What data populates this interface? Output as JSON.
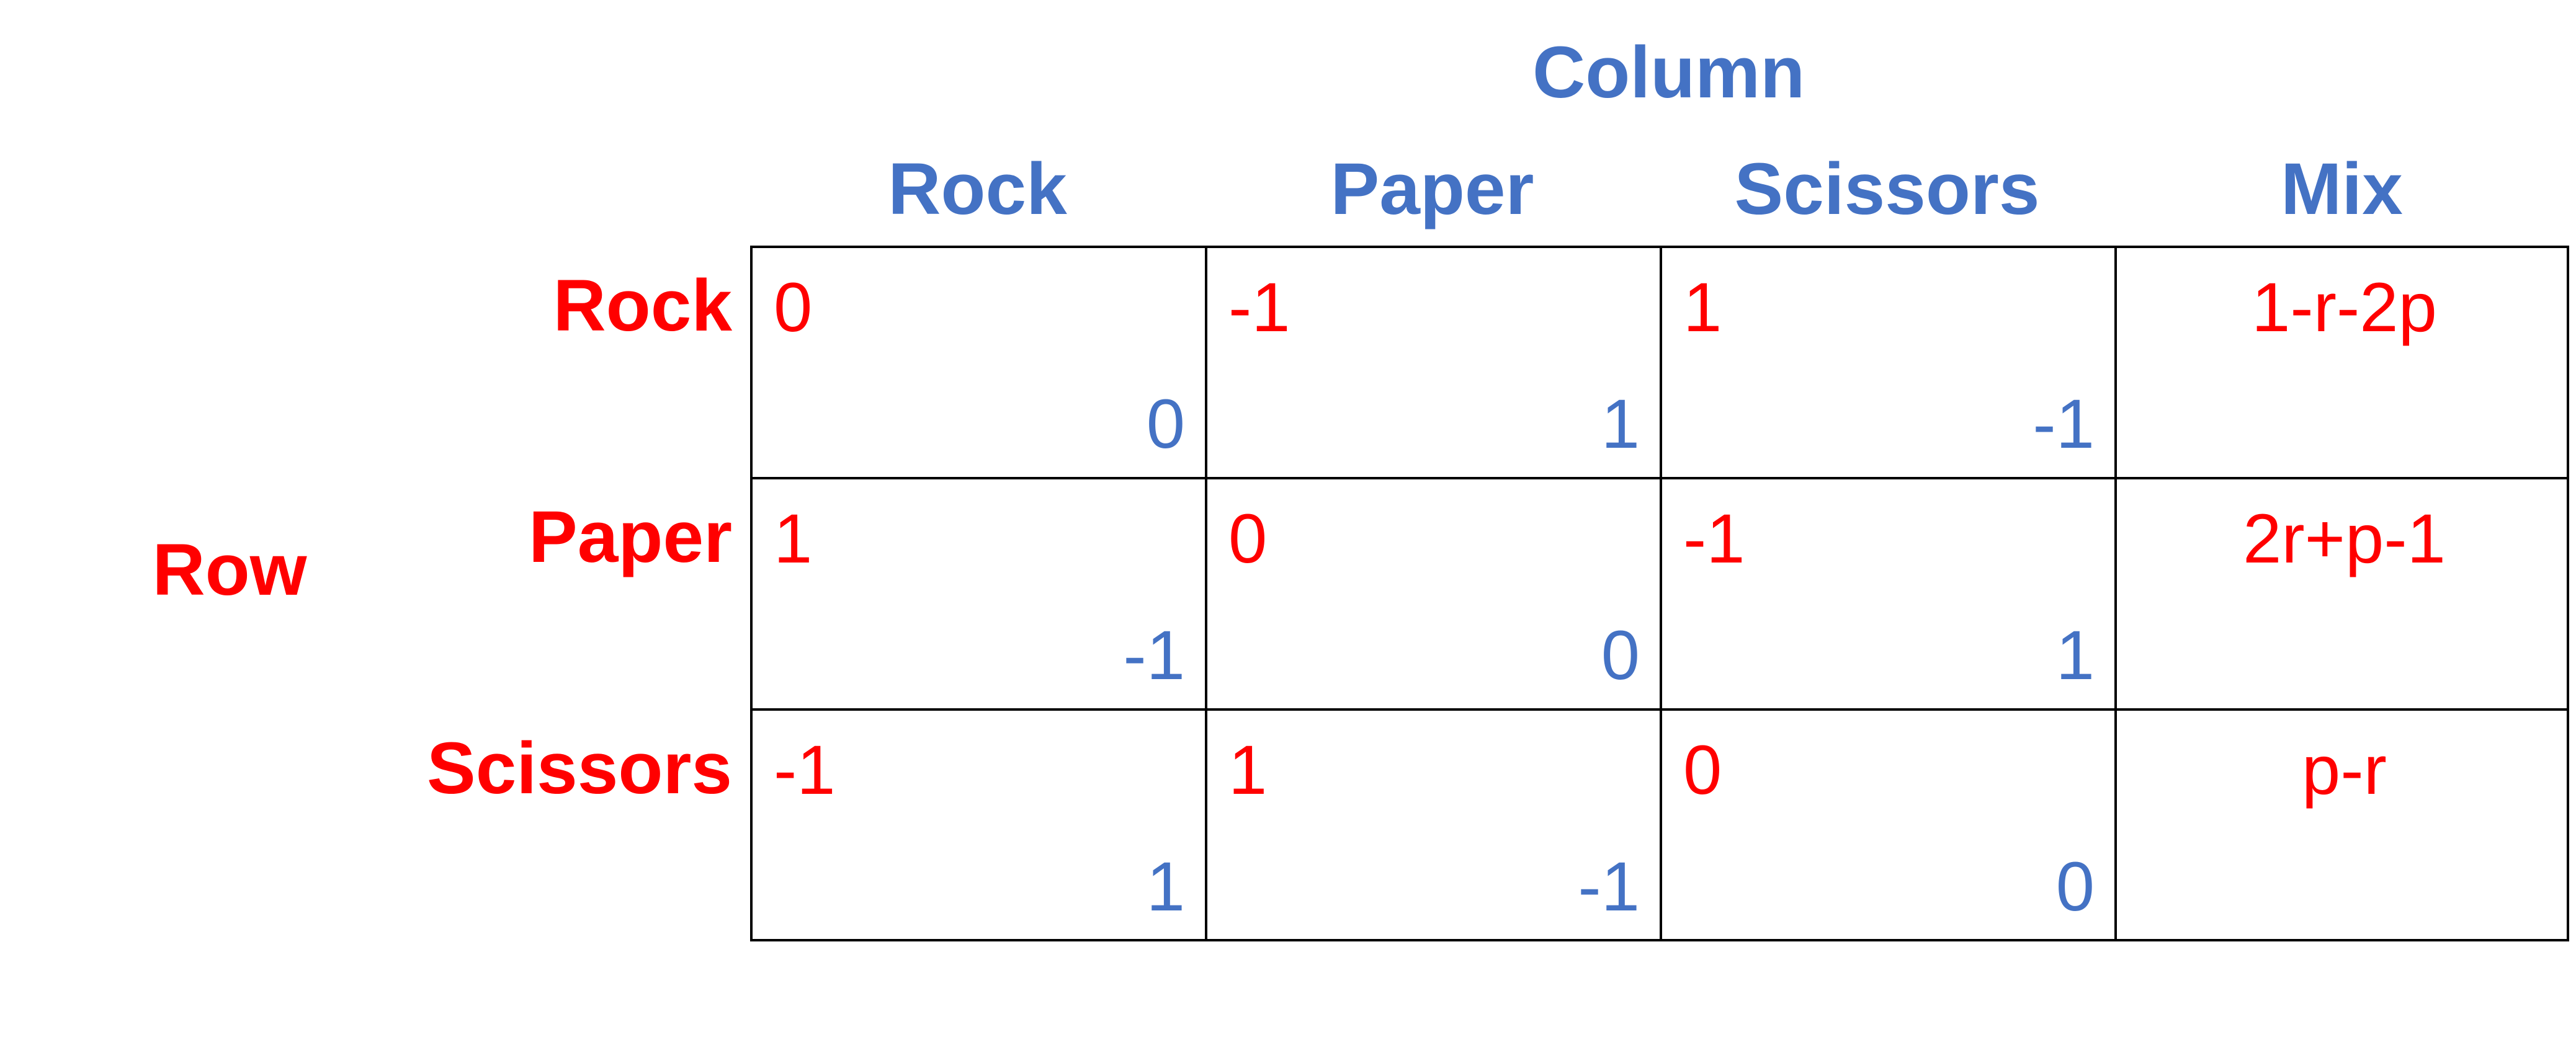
{
  "colors": {
    "row_player": "#ff0000",
    "column_player": "#4472c4"
  },
  "column_player_label": "Column",
  "row_player_label": "Row",
  "column_headers": [
    "Rock",
    "Paper",
    "Scissors",
    "Mix"
  ],
  "row_headers": [
    "Rock",
    "Paper",
    "Scissors"
  ],
  "payoffs": [
    [
      {
        "row": "0",
        "col": "0"
      },
      {
        "row": "-1",
        "col": "1"
      },
      {
        "row": "1",
        "col": "-1"
      }
    ],
    [
      {
        "row": "1",
        "col": "-1"
      },
      {
        "row": "0",
        "col": "0"
      },
      {
        "row": "-1",
        "col": "1"
      }
    ],
    [
      {
        "row": "-1",
        "col": "1"
      },
      {
        "row": "1",
        "col": "-1"
      },
      {
        "row": "0",
        "col": "0"
      }
    ]
  ],
  "mix_payoffs": [
    "1-r-2p",
    "2r+p-1",
    "p-r"
  ]
}
